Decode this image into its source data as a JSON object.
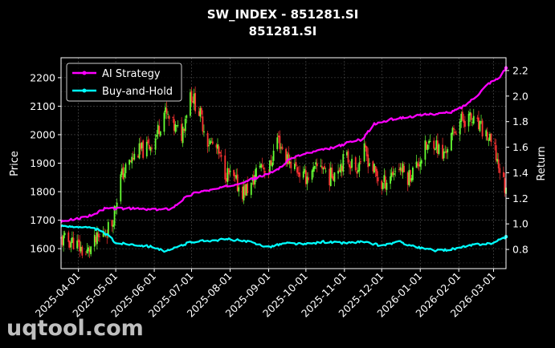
{
  "chart_data": {
    "type": "line",
    "title": "SW_INDEX - 851281.SI",
    "subtitle": "851281.SI",
    "ylabel_left": "Price",
    "ylabel_right": "Return",
    "x_range": [
      "2025-03-18",
      "2026-03-11"
    ],
    "ylim_left": [
      1530,
      2270
    ],
    "ylim_right": [
      0.65,
      2.3
    ],
    "left_ticks": [
      1600,
      1700,
      1800,
      1900,
      2000,
      2100,
      2200
    ],
    "right_ticks": [
      "0.8",
      "1.0",
      "1.2",
      "1.4",
      "1.6",
      "1.8",
      "2.0",
      "2.2"
    ],
    "right_tick_values": [
      0.8,
      1.0,
      1.2,
      1.4,
      1.6,
      1.8,
      2.0,
      2.2
    ],
    "x_ticks": [
      "2025-04-01",
      "2025-05-01",
      "2025-06-01",
      "2025-07-01",
      "2025-08-01",
      "2025-09-01",
      "2025-10-01",
      "2025-11-01",
      "2025-12-01",
      "2026-01-01",
      "2026-02-01",
      "2026-03-01"
    ],
    "grid": true,
    "legend_position": "top-left",
    "price_series": {
      "name": "Price (candlesticks)",
      "up_color": "#66ff33",
      "down_color": "#ff3333",
      "points": [
        [
          "2025-03-18",
          1630
        ],
        [
          "2025-03-28",
          1625
        ],
        [
          "2025-04-07",
          1580
        ],
        [
          "2025-04-14",
          1620
        ],
        [
          "2025-04-21",
          1650
        ],
        [
          "2025-04-28",
          1690
        ],
        [
          "2025-05-05",
          1850
        ],
        [
          "2025-05-12",
          1900
        ],
        [
          "2025-05-19",
          1940
        ],
        [
          "2025-05-26",
          1950
        ],
        [
          "2025-06-02",
          1990
        ],
        [
          "2025-06-09",
          2080
        ],
        [
          "2025-06-16",
          2030
        ],
        [
          "2025-06-23",
          2000
        ],
        [
          "2025-06-30",
          2150
        ],
        [
          "2025-07-07",
          2080
        ],
        [
          "2025-07-14",
          1980
        ],
        [
          "2025-07-21",
          1950
        ],
        [
          "2025-07-28",
          1870
        ],
        [
          "2025-08-04",
          1840
        ],
        [
          "2025-08-11",
          1800
        ],
        [
          "2025-08-18",
          1820
        ],
        [
          "2025-08-25",
          1900
        ],
        [
          "2025-09-01",
          1870
        ],
        [
          "2025-09-08",
          1990
        ],
        [
          "2025-09-15",
          1920
        ],
        [
          "2025-09-22",
          1890
        ],
        [
          "2025-09-29",
          1850
        ],
        [
          "2025-10-06",
          1860
        ],
        [
          "2025-10-13",
          1900
        ],
        [
          "2025-10-20",
          1850
        ],
        [
          "2025-10-27",
          1890
        ],
        [
          "2025-11-03",
          1920
        ],
        [
          "2025-11-10",
          1880
        ],
        [
          "2025-11-17",
          1940
        ],
        [
          "2025-11-24",
          1880
        ],
        [
          "2025-12-01",
          1820
        ],
        [
          "2025-12-08",
          1860
        ],
        [
          "2025-12-15",
          1890
        ],
        [
          "2025-12-22",
          1850
        ],
        [
          "2025-12-29",
          1890
        ],
        [
          "2026-01-05",
          1950
        ],
        [
          "2026-01-12",
          1980
        ],
        [
          "2026-01-19",
          1920
        ],
        [
          "2026-01-26",
          1990
        ],
        [
          "2026-02-02",
          2050
        ],
        [
          "2026-02-09",
          2060
        ],
        [
          "2026-02-16",
          2030
        ],
        [
          "2026-02-23",
          2000
        ],
        [
          "2026-03-02",
          1940
        ],
        [
          "2026-03-11",
          1800
        ]
      ]
    },
    "series": [
      {
        "name": "AI Strategy",
        "axis": "right",
        "color": "#ff00ff",
        "points": [
          [
            "2025-03-18",
            1.02
          ],
          [
            "2025-04-01",
            1.04
          ],
          [
            "2025-04-15",
            1.08
          ],
          [
            "2025-04-22",
            1.12
          ],
          [
            "2025-05-15",
            1.12
          ],
          [
            "2025-06-01",
            1.11
          ],
          [
            "2025-06-15",
            1.12
          ],
          [
            "2025-06-25",
            1.2
          ],
          [
            "2025-07-05",
            1.25
          ],
          [
            "2025-07-20",
            1.27
          ],
          [
            "2025-08-01",
            1.3
          ],
          [
            "2025-08-15",
            1.34
          ],
          [
            "2025-09-01",
            1.39
          ],
          [
            "2025-09-10",
            1.44
          ],
          [
            "2025-09-20",
            1.52
          ],
          [
            "2025-10-01",
            1.55
          ],
          [
            "2025-10-15",
            1.58
          ],
          [
            "2025-10-25",
            1.6
          ],
          [
            "2025-11-05",
            1.64
          ],
          [
            "2025-11-15",
            1.66
          ],
          [
            "2025-11-25",
            1.78
          ],
          [
            "2025-12-10",
            1.82
          ],
          [
            "2025-12-25",
            1.84
          ],
          [
            "2026-01-10",
            1.86
          ],
          [
            "2026-01-25",
            1.87
          ],
          [
            "2026-02-05",
            1.92
          ],
          [
            "2026-02-15",
            2.0
          ],
          [
            "2026-02-25",
            2.1
          ],
          [
            "2026-03-05",
            2.14
          ],
          [
            "2026-03-11",
            2.22
          ]
        ]
      },
      {
        "name": "Buy-and-Hold",
        "axis": "right",
        "color": "#00ffff",
        "points": [
          [
            "2025-03-18",
            0.98
          ],
          [
            "2025-04-01",
            0.98
          ],
          [
            "2025-04-15",
            0.96
          ],
          [
            "2025-04-25",
            0.91
          ],
          [
            "2025-05-01",
            0.85
          ],
          [
            "2025-05-15",
            0.84
          ],
          [
            "2025-06-01",
            0.82
          ],
          [
            "2025-06-10",
            0.78
          ],
          [
            "2025-06-20",
            0.82
          ],
          [
            "2025-07-01",
            0.86
          ],
          [
            "2025-07-15",
            0.87
          ],
          [
            "2025-08-01",
            0.88
          ],
          [
            "2025-08-15",
            0.86
          ],
          [
            "2025-09-01",
            0.82
          ],
          [
            "2025-09-15",
            0.85
          ],
          [
            "2025-10-01",
            0.84
          ],
          [
            "2025-10-15",
            0.86
          ],
          [
            "2025-11-01",
            0.85
          ],
          [
            "2025-11-15",
            0.86
          ],
          [
            "2025-12-01",
            0.83
          ],
          [
            "2025-12-15",
            0.86
          ],
          [
            "2026-01-01",
            0.81
          ],
          [
            "2026-01-15",
            0.79
          ],
          [
            "2026-02-01",
            0.81
          ],
          [
            "2026-02-15",
            0.84
          ],
          [
            "2026-03-01",
            0.85
          ],
          [
            "2026-03-11",
            0.9
          ]
        ]
      }
    ]
  },
  "watermark": "uqtool.com"
}
